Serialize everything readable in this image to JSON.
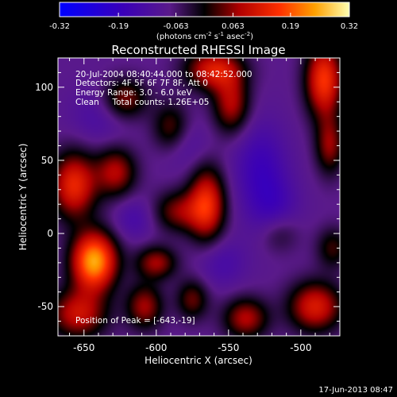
{
  "chart_data": {
    "type": "heatmap",
    "title": "Reconstructed RHESSI Image",
    "xlabel": "Heliocentric X (arcsec)",
    "ylabel": "Heliocentric Y (arcsec)",
    "xlim": [
      -668,
      -473
    ],
    "ylim": [
      -70,
      120
    ],
    "x_ticks": [
      -650,
      -600,
      -550,
      -500
    ],
    "x_tick_labels": [
      "-650",
      "-600",
      "-550",
      "-500"
    ],
    "y_ticks": [
      -50,
      0,
      50,
      100
    ],
    "y_tick_labels": [
      "-50",
      "0",
      "50",
      "100"
    ],
    "colorbar": {
      "range": [
        -0.32,
        0.32
      ],
      "ticks": [
        -0.32,
        -0.19,
        -0.063,
        0.063,
        0.19,
        0.32
      ],
      "tick_labels": [
        "-0.32",
        "-0.19",
        "-0.063",
        "0.063",
        "0.19",
        "0.32"
      ],
      "unit_label": "(photons cm",
      "unit_exp1": "-2",
      "unit_mid": " s",
      "unit_exp2": "-1",
      "unit_mid2": " asec",
      "unit_exp3": "-2",
      "unit_end": ")"
    },
    "info_lines": [
      "20-Jul-2004 08:40:44.000 to 08:42:52.000",
      "Detectors: 4F 5F 6F 7F 8F, Att 0",
      "Energy Range: 3.0 - 6.0 keV",
      "Clean     Total counts: 1.26E+05"
    ],
    "peak_label": "Position of Peak = [-643,-19]",
    "timestamp": "17-Jun-2013 08:47",
    "sources": [
      {
        "x": -643,
        "y": -19,
        "amp": 0.33,
        "sx": 11,
        "sy": 14
      },
      {
        "x": -657,
        "y": 33,
        "amp": 0.22,
        "sx": 11,
        "sy": 16
      },
      {
        "x": -654,
        "y": -55,
        "amp": 0.18,
        "sx": 14,
        "sy": 12
      },
      {
        "x": -628,
        "y": 42,
        "amp": 0.16,
        "sx": 10,
        "sy": 12
      },
      {
        "x": -622,
        "y": 92,
        "amp": 0.14,
        "sx": 11,
        "sy": 10
      },
      {
        "x": -590,
        "y": 72,
        "amp": 0.12,
        "sx": 9,
        "sy": 12
      },
      {
        "x": -560,
        "y": 112,
        "amp": 0.2,
        "sx": 14,
        "sy": 10
      },
      {
        "x": -548,
        "y": 88,
        "amp": 0.16,
        "sx": 9,
        "sy": 14
      },
      {
        "x": -484,
        "y": 105,
        "amp": 0.24,
        "sx": 9,
        "sy": 18
      },
      {
        "x": -480,
        "y": 60,
        "amp": 0.14,
        "sx": 7,
        "sy": 14
      },
      {
        "x": -565,
        "y": 20,
        "amp": 0.22,
        "sx": 9,
        "sy": 18
      },
      {
        "x": -585,
        "y": 15,
        "amp": 0.13,
        "sx": 12,
        "sy": 10
      },
      {
        "x": -600,
        "y": -20,
        "amp": 0.15,
        "sx": 10,
        "sy": 8
      },
      {
        "x": -608,
        "y": -50,
        "amp": 0.15,
        "sx": 9,
        "sy": 11
      },
      {
        "x": -575,
        "y": -45,
        "amp": 0.12,
        "sx": 8,
        "sy": 10
      },
      {
        "x": -538,
        "y": -58,
        "amp": 0.16,
        "sx": 11,
        "sy": 10
      },
      {
        "x": -490,
        "y": -50,
        "amp": 0.2,
        "sx": 13,
        "sy": 12
      },
      {
        "x": -478,
        "y": -10,
        "amp": 0.1,
        "sx": 8,
        "sy": 10
      },
      {
        "x": -515,
        "y": 0,
        "amp": 0.08,
        "sx": 10,
        "sy": 10
      },
      {
        "x": -528,
        "y": 45,
        "amp": -0.09,
        "sx": 13,
        "sy": 22
      },
      {
        "x": -518,
        "y": 15,
        "amp": -0.07,
        "sx": 12,
        "sy": 16
      },
      {
        "x": -640,
        "y": 80,
        "amp": -0.05,
        "sx": 14,
        "sy": 14
      },
      {
        "x": -580,
        "y": 60,
        "amp": -0.05,
        "sx": 12,
        "sy": 12
      },
      {
        "x": -615,
        "y": 10,
        "amp": -0.06,
        "sx": 10,
        "sy": 10
      },
      {
        "x": -555,
        "y": -20,
        "amp": -0.06,
        "sx": 12,
        "sy": 12
      }
    ]
  }
}
